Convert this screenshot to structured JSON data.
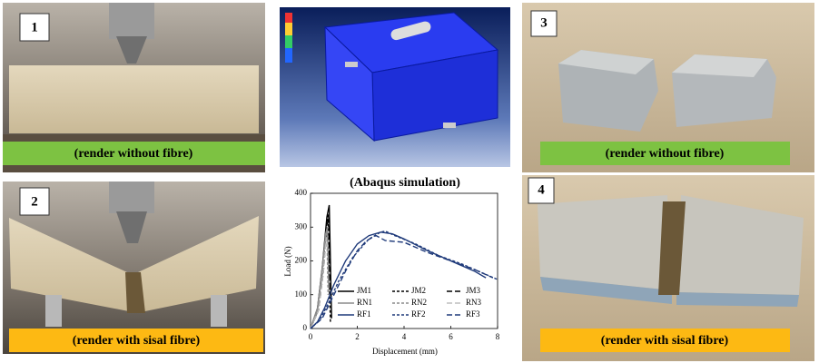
{
  "panels": [
    {
      "number": "1",
      "caption": "(render without fibre)"
    },
    {
      "number": "2",
      "caption": "(render with sisal fibre)"
    },
    {
      "number": "3",
      "caption": "(render without fibre)"
    },
    {
      "number": "4",
      "caption": "(render with sisal fibre)"
    }
  ],
  "simulation_caption": "(Abaqus simulation)",
  "chart_data": {
    "type": "line",
    "x_label": "Displacement (mm)",
    "y_label": "Load (N)",
    "xlim": [
      0,
      8
    ],
    "xticks": [
      0,
      2,
      4,
      6,
      8
    ],
    "ylim": [
      0,
      400
    ],
    "yticks": [
      0,
      100,
      200,
      300,
      400
    ],
    "series": [
      {
        "name": "JM1",
        "color": "#000000",
        "dash": "solid",
        "x": [
          0,
          0.3,
          0.5,
          0.7,
          0.8,
          0.85,
          0.9
        ],
        "values": [
          0,
          60,
          180,
          330,
          365,
          200,
          30
        ]
      },
      {
        "name": "JM2",
        "color": "#000000",
        "dash": "short",
        "x": [
          0,
          0.3,
          0.5,
          0.68,
          0.75,
          0.8,
          0.85
        ],
        "values": [
          0,
          50,
          160,
          300,
          340,
          150,
          20
        ]
      },
      {
        "name": "JM3",
        "color": "#000000",
        "dash": "long",
        "x": [
          0,
          0.35,
          0.55,
          0.72,
          0.78,
          0.82
        ],
        "values": [
          0,
          55,
          170,
          310,
          330,
          100
        ]
      },
      {
        "name": "RN1",
        "color": "#8c8c8c",
        "dash": "solid",
        "x": [
          0,
          0.3,
          0.5,
          0.65,
          0.72,
          0.78
        ],
        "values": [
          0,
          60,
          180,
          280,
          300,
          120
        ]
      },
      {
        "name": "RN2",
        "color": "#8c8c8c",
        "dash": "short",
        "x": [
          0,
          0.3,
          0.5,
          0.62,
          0.7,
          0.75
        ],
        "values": [
          0,
          50,
          160,
          260,
          290,
          100
        ]
      },
      {
        "name": "RN3",
        "color": "#bdbdbd",
        "dash": "long",
        "x": [
          0,
          0.35,
          0.55,
          0.68,
          0.74
        ],
        "values": [
          0,
          55,
          170,
          270,
          230
        ]
      },
      {
        "name": "RF1",
        "color": "#1f3a7a",
        "dash": "solid",
        "x": [
          0,
          0.3,
          0.6,
          1,
          1.5,
          2,
          2.5,
          3,
          3.5,
          4,
          5,
          6,
          7,
          7.5
        ],
        "values": [
          0,
          20,
          60,
          130,
          200,
          250,
          275,
          285,
          280,
          265,
          230,
          200,
          170,
          150
        ]
      },
      {
        "name": "RF2",
        "color": "#1f3a7a",
        "dash": "short",
        "x": [
          0,
          0.4,
          0.8,
          1.2,
          1.8,
          2.5,
          3,
          3.2,
          3.6,
          4.5,
          5.5,
          6.5,
          7.5,
          8
        ],
        "values": [
          0,
          25,
          80,
          140,
          210,
          265,
          285,
          288,
          275,
          250,
          215,
          190,
          160,
          145
        ]
      },
      {
        "name": "RF3",
        "color": "#1f3a7a",
        "dash": "long",
        "x": [
          0,
          0.5,
          1,
          1.5,
          2,
          2.4,
          2.8,
          3.2,
          4,
          5,
          6,
          7,
          7.8
        ],
        "values": [
          0,
          30,
          100,
          170,
          230,
          260,
          275,
          260,
          255,
          225,
          200,
          175,
          150
        ]
      }
    ]
  }
}
